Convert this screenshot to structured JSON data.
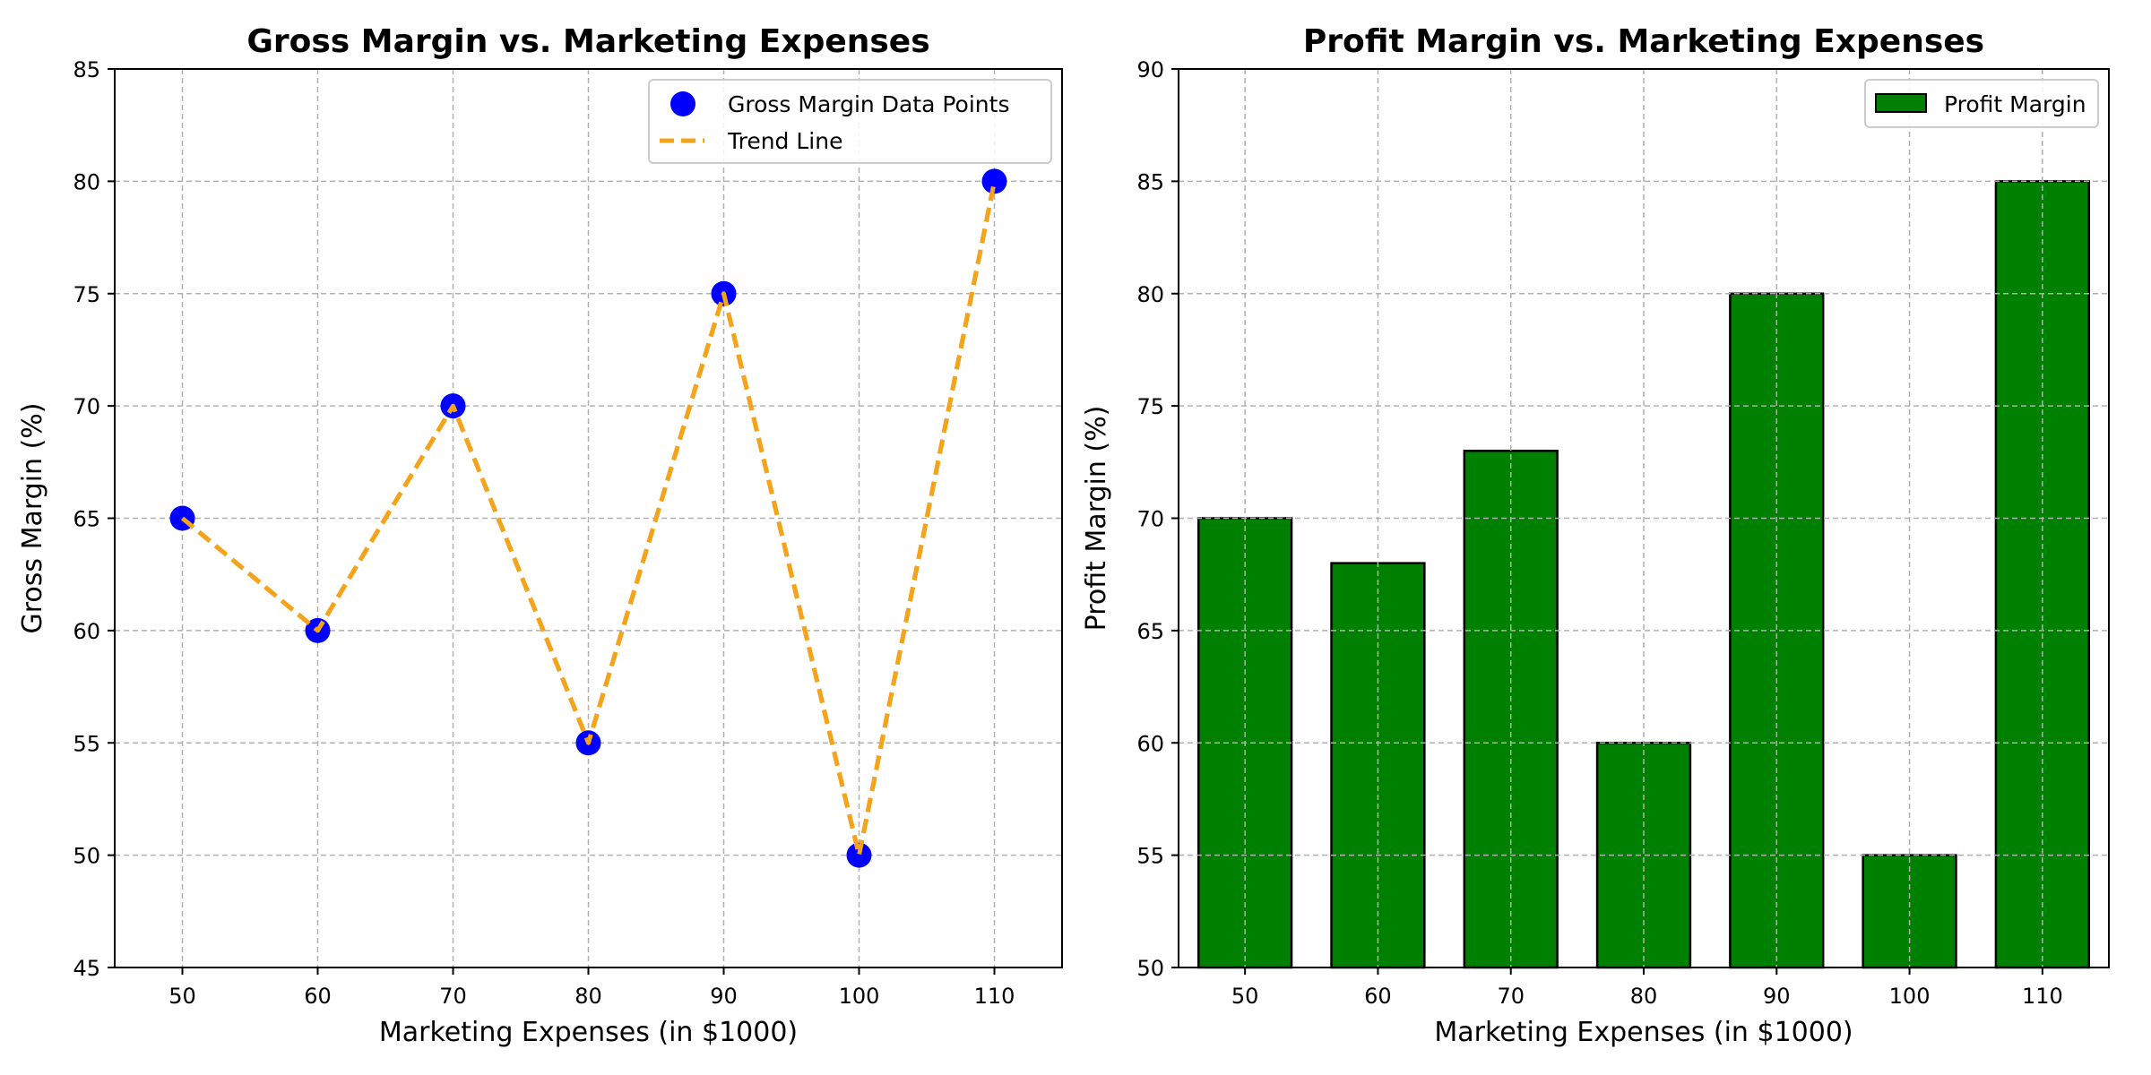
{
  "chart_data": [
    {
      "type": "scatter",
      "title": "Gross Margin vs. Marketing Expenses",
      "xlabel": "Marketing Expenses (in $1000)",
      "ylabel": "Gross Margin (%)",
      "x": [
        50,
        60,
        70,
        80,
        90,
        100,
        110
      ],
      "xticks": [
        50,
        60,
        70,
        80,
        90,
        100,
        110
      ],
      "xlim": [
        45,
        115
      ],
      "ylim": [
        45,
        85
      ],
      "yticks": [
        45,
        50,
        55,
        60,
        65,
        70,
        75,
        80,
        85
      ],
      "grid": true,
      "legend_position": "top-right",
      "series": [
        {
          "name": "Gross Margin Data Points",
          "kind": "scatter",
          "color": "#0000ff",
          "values": [
            65,
            60,
            70,
            55,
            75,
            50,
            80
          ]
        },
        {
          "name": "Trend Line",
          "kind": "line",
          "style": "dashed",
          "color": "#f5a31a",
          "values": [
            65,
            60,
            70,
            55,
            75,
            50,
            80
          ]
        }
      ]
    },
    {
      "type": "bar",
      "title": "Profit Margin vs. Marketing Expenses",
      "xlabel": "Marketing Expenses (in $1000)",
      "ylabel": "Profit Margin (%)",
      "categories": [
        "50",
        "60",
        "70",
        "80",
        "90",
        "100",
        "110"
      ],
      "ylim": [
        50,
        90
      ],
      "yticks": [
        50,
        55,
        60,
        65,
        70,
        75,
        80,
        85,
        90
      ],
      "grid": true,
      "legend_position": "top-right",
      "series": [
        {
          "name": "Profit Margin",
          "color": "#008000",
          "edgecolor": "#000000",
          "values": [
            70,
            68,
            73,
            60,
            80,
            55,
            85
          ]
        }
      ]
    }
  ]
}
